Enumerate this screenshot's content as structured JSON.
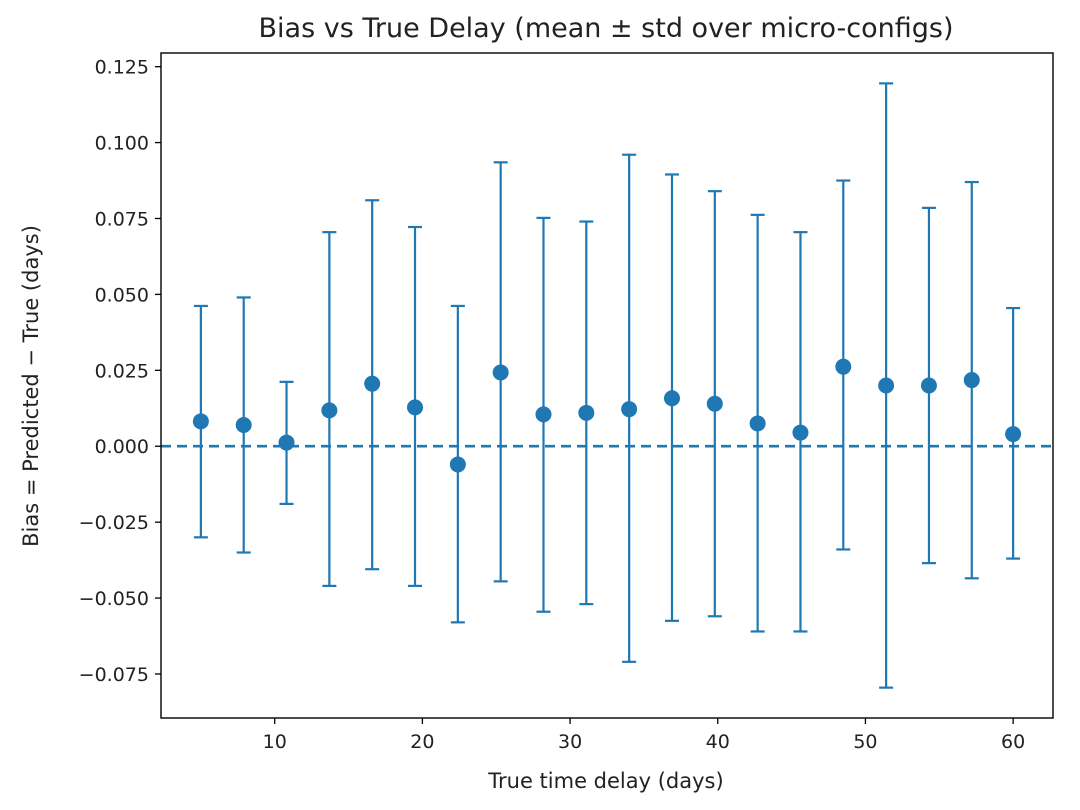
{
  "chart_data": {
    "type": "scatter",
    "title": "Bias vs True Delay (mean ± std over micro-configs)",
    "xlabel": "True time delay (days)",
    "ylabel": "Bias = Predicted − True (days)",
    "xlim": [
      2.3,
      62.7
    ],
    "ylim": [
      -0.0895,
      0.1295
    ],
    "xticks": [
      10,
      20,
      30,
      40,
      50,
      60
    ],
    "xtick_labels": [
      "10",
      "20",
      "30",
      "40",
      "50",
      "60"
    ],
    "yticks": [
      -0.075,
      -0.05,
      -0.025,
      0.0,
      0.025,
      0.05,
      0.075,
      0.1,
      0.125
    ],
    "ytick_labels": [
      "−0.075",
      "−0.050",
      "−0.025",
      "0.000",
      "0.025",
      "0.050",
      "0.075",
      "0.100",
      "0.125"
    ],
    "reference_line": 0.0,
    "color": "#1f77b4",
    "grid": false,
    "series": [
      {
        "x": [
          5.0,
          7.9,
          10.8,
          13.7,
          16.6,
          19.5,
          22.4,
          25.3,
          28.2,
          31.1,
          34.0,
          36.9,
          39.8,
          42.7,
          45.6,
          48.5,
          51.4,
          54.3,
          57.2,
          60.0
        ],
        "y": [
          0.0082,
          0.007,
          0.0012,
          0.0118,
          0.0206,
          0.0128,
          -0.006,
          0.0243,
          0.0105,
          0.011,
          0.0122,
          0.0158,
          0.014,
          0.0075,
          0.0045,
          0.0262,
          0.02,
          0.02,
          0.0218,
          0.004
        ],
        "ymin": [
          -0.03,
          -0.035,
          -0.019,
          -0.046,
          -0.0405,
          -0.046,
          -0.058,
          -0.0445,
          -0.0545,
          -0.052,
          -0.071,
          -0.0575,
          -0.056,
          -0.061,
          -0.061,
          -0.034,
          -0.0795,
          -0.0385,
          -0.0435,
          -0.037
        ],
        "ymax": [
          0.0462,
          0.049,
          0.0212,
          0.0705,
          0.081,
          0.0722,
          0.0462,
          0.0935,
          0.0752,
          0.074,
          0.096,
          0.0895,
          0.084,
          0.0762,
          0.0705,
          0.0875,
          0.1195,
          0.0785,
          0.087,
          0.0455
        ]
      }
    ]
  }
}
